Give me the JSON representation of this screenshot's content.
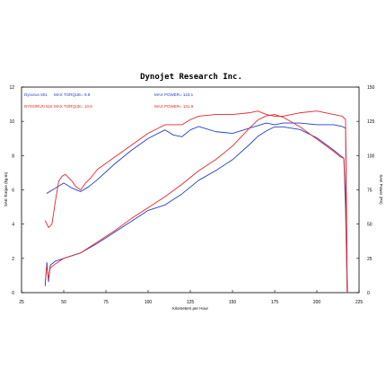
{
  "chart_data": {
    "type": "line",
    "title": "Dynojet Research Inc.",
    "xlabel": "Kilometers per Hour",
    "ylabel_left": "SAE Torque (kg-m)",
    "ylabel_right": "SAE Power (PS)",
    "xlim": [
      25,
      225
    ],
    "ylim_left": [
      0,
      12
    ],
    "ylim_right": [
      0,
      150
    ],
    "x_ticks": [
      "25",
      "50",
      "75",
      "100",
      "125",
      "150",
      "175",
      "200",
      "225"
    ],
    "y_ticks_left": [
      "0",
      "2",
      "4",
      "6",
      "8",
      "10",
      "12"
    ],
    "y_ticks_right": [
      "0",
      "25",
      "50",
      "75",
      "100",
      "125",
      "150"
    ],
    "grid": false,
    "legend": [
      {
        "run": "Dynorun 601",
        "torque": "MAX TORQUE= 9.9",
        "power": "MAX POWER= 123.1",
        "color": "#1f3fc8"
      },
      {
        "run": "DYNORUN 615",
        "torque": "MAX TORQUE= 10.6",
        "power": "MAX POWER= 131.8",
        "color": "#e8242c"
      }
    ],
    "series": [
      {
        "name": "Dynorun 601",
        "axis": "left",
        "color": "#1f3fc8",
        "x": [
          40,
          45,
          50,
          55,
          60,
          65,
          70,
          80,
          90,
          100,
          110,
          115,
          120,
          125,
          130,
          140,
          150,
          160,
          170,
          175,
          180,
          190,
          200,
          210,
          215,
          217,
          218
        ],
        "y": [
          5.8,
          6.1,
          6.4,
          6.1,
          5.9,
          6.2,
          6.6,
          7.5,
          8.3,
          9.0,
          9.5,
          9.2,
          9.1,
          9.5,
          9.7,
          9.4,
          9.3,
          9.6,
          9.9,
          9.8,
          9.9,
          9.9,
          9.8,
          9.8,
          9.7,
          9.6,
          0.0
        ]
      },
      {
        "name": "DYNORUN 615",
        "axis": "left",
        "color": "#e8242c",
        "x": [
          39,
          41,
          43,
          45,
          47,
          49,
          51,
          53,
          55,
          57,
          60,
          63,
          66,
          70,
          80,
          90,
          100,
          110,
          120,
          125,
          130,
          140,
          150,
          160,
          165,
          170,
          175,
          180,
          190,
          200,
          210,
          215,
          217,
          218
        ],
        "y": [
          4.2,
          3.8,
          4.0,
          5.3,
          6.5,
          6.8,
          6.9,
          6.7,
          6.5,
          6.2,
          6.0,
          6.4,
          6.7,
          7.2,
          7.9,
          8.6,
          9.3,
          9.8,
          9.8,
          10.1,
          10.3,
          10.4,
          10.4,
          10.5,
          10.6,
          10.4,
          10.3,
          10.3,
          10.5,
          10.6,
          10.4,
          10.3,
          10.1,
          0.0
        ]
      },
      {
        "name": "Dynorun 601 power",
        "axis": "right",
        "color": "#1f3fc8",
        "x": [
          39,
          40,
          41,
          42,
          45,
          50,
          60,
          70,
          80,
          90,
          100,
          110,
          120,
          130,
          140,
          150,
          160,
          165,
          170,
          175,
          180,
          190,
          200,
          210,
          214,
          216,
          217,
          218
        ],
        "y": [
          5,
          22,
          8,
          20,
          23,
          25,
          29,
          36,
          44,
          52,
          60,
          64,
          72,
          82,
          89,
          97,
          108,
          114,
          118,
          121,
          121,
          119,
          113,
          104,
          100,
          98,
          60,
          0
        ]
      },
      {
        "name": "DYNORUN 615 power",
        "axis": "right",
        "color": "#e8242c",
        "x": [
          39,
          40,
          41,
          42,
          45,
          50,
          60,
          70,
          80,
          90,
          100,
          110,
          120,
          130,
          140,
          150,
          160,
          165,
          170,
          175,
          180,
          190,
          200,
          210,
          214,
          216,
          217,
          218
        ],
        "y": [
          7,
          20,
          10,
          18,
          21,
          25,
          29,
          37,
          45,
          54,
          62,
          70,
          79,
          89,
          97,
          107,
          120,
          126,
          129,
          130,
          128,
          121,
          112,
          103,
          99,
          98,
          70,
          0
        ]
      }
    ]
  }
}
